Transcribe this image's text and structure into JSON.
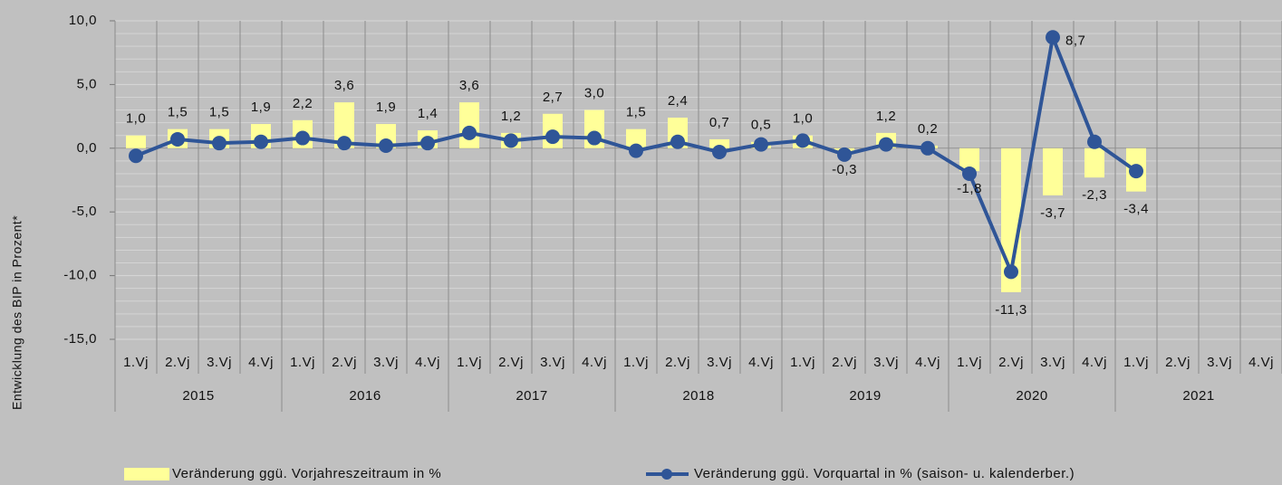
{
  "chart_data": {
    "type": "combo",
    "y_label": "Entwicklung des BIP in Prozent*",
    "categories": [
      "1.Vj",
      "2.Vj",
      "3.Vj",
      "4.Vj",
      "1.Vj",
      "2.Vj",
      "3.Vj",
      "4.Vj",
      "1.Vj",
      "2.Vj",
      "3.Vj",
      "4.Vj",
      "1.Vj",
      "2.Vj",
      "3.Vj",
      "4.Vj",
      "1.Vj",
      "2.Vj",
      "3.Vj",
      "4.Vj",
      "1.Vj",
      "2.Vj",
      "3.Vj",
      "4.Vj",
      "1.Vj",
      "2.Vj",
      "3.Vj",
      "4.Vj"
    ],
    "groups": [
      "2015",
      "2016",
      "2017",
      "2018",
      "2019",
      "2020",
      "2021"
    ],
    "series": [
      {
        "name": "Veränderung ggü. Vorjahreszeitraum in %",
        "type": "bar",
        "color": "#ffff99",
        "values": [
          1.0,
          1.5,
          1.5,
          1.9,
          2.2,
          3.6,
          1.9,
          1.4,
          3.6,
          1.2,
          2.7,
          3.0,
          1.5,
          2.4,
          0.7,
          0.5,
          1.0,
          -0.3,
          1.2,
          0.2,
          -1.8,
          -11.3,
          -3.7,
          -2.3,
          -3.4,
          null,
          null,
          null
        ],
        "value_labels": [
          "1,0",
          "1,5",
          "1,5",
          "1,9",
          "2,2",
          "3,6",
          "1,9",
          "1,4",
          "3,6",
          "1,2",
          "2,7",
          "3,0",
          "1,5",
          "2,4",
          "0,7",
          "0,5",
          "1,0",
          "-0,3",
          "1,2",
          "0,2",
          "-1,8",
          "-11,3",
          "-3,7",
          "-2,3",
          "-3,4",
          null,
          null,
          null
        ]
      },
      {
        "name": "Veränderung ggü. Vorquartal in % (saison- u. kalenderber.)",
        "type": "line",
        "color": "#2f5597",
        "values": [
          -0.6,
          0.7,
          0.4,
          0.5,
          0.8,
          0.4,
          0.2,
          0.4,
          1.2,
          0.6,
          0.9,
          0.8,
          -0.2,
          0.5,
          -0.3,
          0.3,
          0.6,
          -0.5,
          0.3,
          0.0,
          -2.0,
          -9.7,
          8.7,
          0.5,
          -1.8,
          null,
          null,
          null
        ],
        "value_labels": [
          null,
          null,
          null,
          null,
          null,
          null,
          null,
          null,
          null,
          null,
          null,
          null,
          null,
          null,
          null,
          null,
          null,
          null,
          null,
          null,
          null,
          null,
          "8,7",
          null,
          null,
          null,
          null,
          null
        ]
      }
    ],
    "ylim": [
      -15,
      10
    ],
    "yticks": [
      {
        "value": -15,
        "label": "-15,0"
      },
      {
        "value": -10,
        "label": "-10,0"
      },
      {
        "value": -5,
        "label": "-5,0"
      },
      {
        "value": 0,
        "label": "0,0"
      },
      {
        "value": 5,
        "label": "5,0"
      },
      {
        "value": 10,
        "label": "10,0"
      }
    ],
    "grid": true
  }
}
